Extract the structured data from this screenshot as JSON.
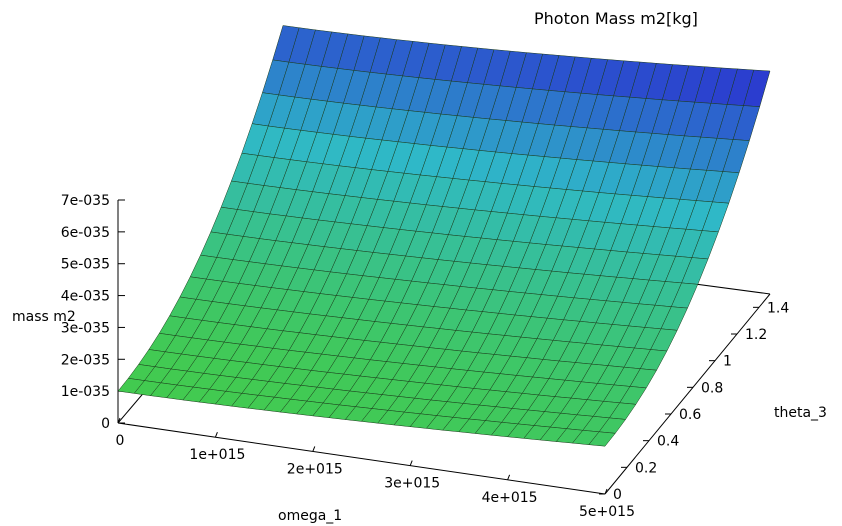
{
  "chart_data": {
    "type": "surface",
    "title": "Photon Mass m2[kg]",
    "xlabel": "omega_1",
    "ylabel": "theta_3",
    "zlabel": "mass m2",
    "x_ticks": [
      "0",
      "1e+015",
      "2e+015",
      "3e+015",
      "4e+015",
      "5e+015"
    ],
    "y_ticks": [
      "0",
      "0.2",
      "0.4",
      "0.6",
      "0.8",
      "1",
      "1.2",
      "1.4"
    ],
    "z_ticks": [
      "0",
      "1e-035",
      "2e-035",
      "3e-035",
      "4e-035",
      "5e-035",
      "6e-035",
      "7e-035"
    ],
    "xlim": [
      0,
      5000000000000000.0
    ],
    "ylim": [
      0,
      1.5
    ],
    "zlim": [
      0,
      7e-35
    ],
    "grid": {
      "x_count": 30,
      "y_count": 16
    },
    "corner_values": {
      "omega0_theta0": 1e-35,
      "omega5e15_theta0": 1.5e-35,
      "omega0_theta1.5": 6.2e-35,
      "omega5e15_theta1.5": 7e-35
    },
    "colormap": [
      "#44cc44",
      "#2fb8c8",
      "#2a2ad0"
    ]
  }
}
